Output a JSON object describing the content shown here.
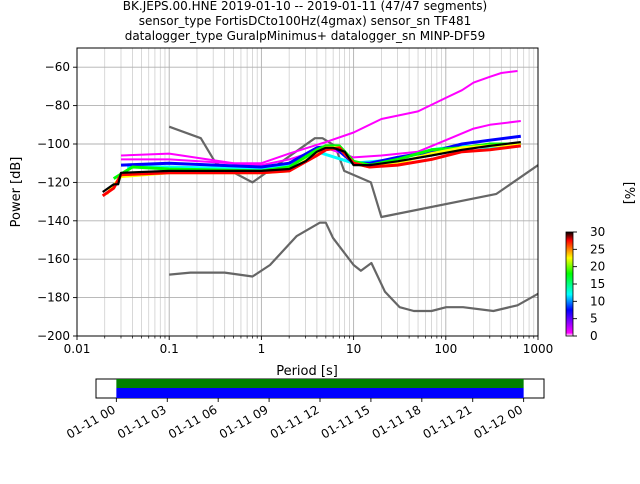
{
  "chart_data": {
    "type": "heatmap",
    "title_lines": [
      "BK.JEPS.00.HNE   2019-01-10 -- 2019-01-11  (47/47 segments)",
      "sensor_type FortisDCto100Hz(4gmax) sensor_sn TF481",
      "datalogger_type GuralpMinimus+ datalogger_sn MINP-DF59"
    ],
    "xlabel": "Period [s]",
    "ylabel": "Power [dB]",
    "xscale": "log",
    "xlim": [
      0.01,
      1000
    ],
    "ylim": [
      -200,
      -50
    ],
    "grid": true,
    "x_ticks": [
      {
        "value": 0.01,
        "label": "0.01"
      },
      {
        "value": 0.1,
        "label": "0.1"
      },
      {
        "value": 1,
        "label": "1"
      },
      {
        "value": 10,
        "label": "10"
      },
      {
        "value": 100,
        "label": "100"
      },
      {
        "value": 1000,
        "label": "1000"
      }
    ],
    "y_ticks": [
      {
        "value": -60,
        "label": "−60"
      },
      {
        "value": -80,
        "label": "−80"
      },
      {
        "value": -100,
        "label": "−100"
      },
      {
        "value": -120,
        "label": "−120"
      },
      {
        "value": -140,
        "label": "−140"
      },
      {
        "value": -160,
        "label": "−160"
      },
      {
        "value": -180,
        "label": "−180"
      },
      {
        "value": -200,
        "label": "−200"
      }
    ],
    "colorbar": {
      "label": "[%]",
      "range": [
        0,
        30
      ],
      "ticks": [
        {
          "value": 0,
          "label": "0"
        },
        {
          "value": 5,
          "label": "5"
        },
        {
          "value": 10,
          "label": "10"
        },
        {
          "value": 15,
          "label": "15"
        },
        {
          "value": 20,
          "label": "20"
        },
        {
          "value": 25,
          "label": "25"
        },
        {
          "value": 30,
          "label": "30"
        }
      ],
      "colors": [
        "#ffffff",
        "#ff00ff",
        "#0000ff",
        "#00ffff",
        "#00ff00",
        "#ffff00",
        "#ff0000",
        "#000000"
      ]
    },
    "noise_model_color": "#666666",
    "noise_models": [
      {
        "points": [
          [
            0.1,
            -91
          ],
          [
            0.22,
            -97
          ],
          [
            0.32,
            -110
          ],
          [
            0.8,
            -120
          ],
          [
            3.8,
            -97
          ],
          [
            4.6,
            -97
          ],
          [
            6.3,
            -101
          ],
          [
            7.9,
            -114
          ],
          [
            15.4,
            -120
          ],
          [
            20,
            -138
          ],
          [
            354,
            -126
          ],
          [
            1000,
            -111
          ]
        ]
      },
      {
        "points": [
          [
            0.1,
            -168
          ],
          [
            0.17,
            -167
          ],
          [
            0.4,
            -167
          ],
          [
            0.8,
            -169
          ],
          [
            1.24,
            -163
          ],
          [
            2.4,
            -148
          ],
          [
            4.3,
            -141
          ],
          [
            5,
            -141
          ],
          [
            6,
            -149
          ],
          [
            10,
            -163
          ],
          [
            12,
            -166
          ],
          [
            15.6,
            -162
          ],
          [
            21.9,
            -177
          ],
          [
            31.6,
            -185
          ],
          [
            45,
            -187
          ],
          [
            70,
            -187
          ],
          [
            101,
            -185
          ],
          [
            154,
            -185
          ],
          [
            328,
            -187
          ],
          [
            600,
            -184
          ],
          [
            1000,
            -178
          ]
        ]
      }
    ],
    "psd_series": [
      {
        "name": "black",
        "color": "#000000",
        "points": [
          [
            0.019,
            -125
          ],
          [
            0.025,
            -121
          ],
          [
            0.028,
            -121
          ],
          [
            0.03,
            -115
          ],
          [
            0.1,
            -114
          ],
          [
            1,
            -114
          ],
          [
            2,
            -113
          ],
          [
            3,
            -109
          ],
          [
            4,
            -104
          ],
          [
            5,
            -102
          ],
          [
            6,
            -102
          ],
          [
            8,
            -104
          ],
          [
            10,
            -111
          ],
          [
            15,
            -111
          ],
          [
            30,
            -109
          ],
          [
            70,
            -106
          ],
          [
            150,
            -103
          ],
          [
            300,
            -101
          ],
          [
            650,
            -99
          ]
        ]
      },
      {
        "name": "red",
        "color": "#ff0000",
        "points": [
          [
            0.019,
            -127
          ],
          [
            0.025,
            -123
          ],
          [
            0.03,
            -116
          ],
          [
            0.1,
            -115
          ],
          [
            1,
            -115
          ],
          [
            2,
            -114
          ],
          [
            4,
            -106
          ],
          [
            5,
            -103
          ],
          [
            7,
            -102
          ],
          [
            10,
            -110
          ],
          [
            15,
            -112
          ],
          [
            30,
            -111
          ],
          [
            70,
            -108
          ],
          [
            150,
            -104
          ],
          [
            300,
            -103
          ],
          [
            650,
            -101
          ]
        ]
      },
      {
        "name": "yellow",
        "color": "#ffff00",
        "points": [
          [
            0.021,
            -126
          ],
          [
            0.03,
            -117
          ],
          [
            0.1,
            -115
          ],
          [
            1,
            -115
          ],
          [
            2,
            -114
          ],
          [
            4,
            -105
          ],
          [
            5,
            -102
          ],
          [
            7,
            -102
          ],
          [
            10,
            -110
          ],
          [
            15,
            -112
          ],
          [
            30,
            -110
          ],
          [
            70,
            -105
          ],
          [
            150,
            -102
          ],
          [
            300,
            -101
          ],
          [
            650,
            -100
          ]
        ]
      },
      {
        "name": "green",
        "color": "#00ff00",
        "points": [
          [
            0.025,
            -118
          ],
          [
            0.04,
            -112
          ],
          [
            0.1,
            -113
          ],
          [
            1,
            -114
          ],
          [
            2,
            -112
          ],
          [
            4,
            -103
          ],
          [
            5,
            -101
          ],
          [
            7,
            -101
          ],
          [
            10,
            -109
          ],
          [
            15,
            -111
          ],
          [
            30,
            -108
          ],
          [
            70,
            -103
          ],
          [
            150,
            -102
          ],
          [
            300,
            -100
          ],
          [
            650,
            -100
          ]
        ]
      },
      {
        "name": "blue",
        "color": "#0000ff",
        "points": [
          [
            0.03,
            -111
          ],
          [
            0.1,
            -110
          ],
          [
            1,
            -112
          ],
          [
            2,
            -110
          ],
          [
            4,
            -102
          ],
          [
            6,
            -101
          ],
          [
            10,
            -110
          ],
          [
            15,
            -110
          ],
          [
            30,
            -107
          ],
          [
            70,
            -104
          ],
          [
            150,
            -100
          ],
          [
            300,
            -98
          ],
          [
            650,
            -96
          ]
        ]
      },
      {
        "name": "cyan",
        "color": "#00ffff",
        "points": [
          [
            0.035,
            -112
          ],
          [
            0.1,
            -112
          ],
          [
            1,
            -113
          ],
          [
            2,
            -111
          ],
          [
            4,
            -104
          ],
          [
            10,
            -110
          ],
          [
            30,
            -108
          ],
          [
            70,
            -103
          ],
          [
            150,
            -101
          ],
          [
            300,
            -102
          ],
          [
            650,
            -101
          ]
        ]
      },
      {
        "name": "magenta-upper",
        "color": "#ff00ff",
        "points": [
          [
            0.03,
            -106
          ],
          [
            0.1,
            -105
          ],
          [
            0.5,
            -110
          ],
          [
            1,
            -110
          ],
          [
            2,
            -105
          ],
          [
            5,
            -99
          ],
          [
            10,
            -94
          ],
          [
            20,
            -87
          ],
          [
            50,
            -83
          ],
          [
            100,
            -76
          ],
          [
            150,
            -72
          ],
          [
            200,
            -68
          ],
          [
            300,
            -65
          ],
          [
            400,
            -63
          ],
          [
            600,
            -62
          ]
        ]
      },
      {
        "name": "magenta-lower",
        "color": "#ff00ff",
        "points": [
          [
            0.03,
            -108
          ],
          [
            0.1,
            -108
          ],
          [
            1,
            -111
          ],
          [
            2,
            -108
          ],
          [
            5,
            -102
          ],
          [
            10,
            -107
          ],
          [
            20,
            -106
          ],
          [
            50,
            -104
          ],
          [
            100,
            -98
          ],
          [
            200,
            -92
          ],
          [
            300,
            -90
          ],
          [
            650,
            -88
          ]
        ]
      }
    ],
    "timeline": {
      "tick_labels": [
        "01-11 00",
        "01-11 03",
        "01-11 06",
        "01-11 09",
        "01-11 12",
        "01-11 15",
        "01-11 18",
        "01-11 21",
        "01-12 00"
      ],
      "ticks_hours": [
        0,
        3,
        6,
        9,
        12,
        15,
        18,
        21,
        24
      ],
      "range_hours": [
        -1.2,
        25.2
      ],
      "coverage_hours": [
        0,
        24
      ],
      "colors": {
        "upper": "#008000",
        "lower": "#0000ff"
      }
    }
  }
}
